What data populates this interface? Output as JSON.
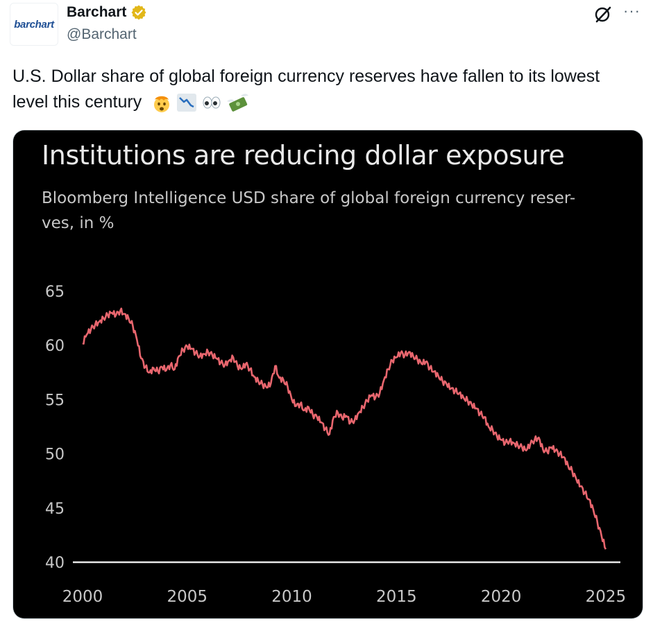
{
  "author": {
    "avatar_text": "barchart",
    "display_name": "Barchart",
    "handle": "@Barchart",
    "verified_badge": "gold-verified-icon"
  },
  "header_actions": {
    "grok_icon": "grok-icon",
    "more_icon_glyph": "···"
  },
  "tweet": {
    "text": "U.S. Dollar share of global foreign currency reserves have fallen to its lowest level this century",
    "emojis": [
      "exploding-head-emoji",
      "chart-decreasing-emoji",
      "eyes-emoji",
      "money-with-wings-emoji"
    ]
  },
  "colors": {
    "line": "#e8666e",
    "verified": "#e2b719",
    "handle": "#536471",
    "chart_bg": "#000000"
  },
  "chart_data": {
    "type": "line",
    "title": "Institutions are reducing dollar exposure",
    "subtitle": "Bloomberg Intelligence USD share of global foreign currency reser- ves, in %",
    "xlabel": "",
    "ylabel": "",
    "xlim": [
      2000,
      2025.7
    ],
    "ylim": [
      40,
      65
    ],
    "xticks": [
      "2000",
      "2005",
      "2010",
      "2015",
      "2020",
      "2025"
    ],
    "yticks": [
      "65",
      "60",
      "55",
      "50",
      "45",
      "40"
    ],
    "grid": false,
    "series": [
      {
        "name": "",
        "points": [
          [
            2000.0,
            60.2
          ],
          [
            2000.2,
            61.0
          ],
          [
            2000.4,
            61.5
          ],
          [
            2000.6,
            61.9
          ],
          [
            2000.8,
            62.2
          ],
          [
            2001.0,
            62.5
          ],
          [
            2001.2,
            62.8
          ],
          [
            2001.4,
            63.0
          ],
          [
            2001.6,
            62.8
          ],
          [
            2001.8,
            63.2
          ],
          [
            2002.0,
            62.9
          ],
          [
            2002.2,
            62.5
          ],
          [
            2002.4,
            61.8
          ],
          [
            2002.6,
            60.5
          ],
          [
            2002.8,
            58.8
          ],
          [
            2003.0,
            58.0
          ],
          [
            2003.2,
            57.5
          ],
          [
            2003.4,
            57.9
          ],
          [
            2003.6,
            57.6
          ],
          [
            2003.8,
            58.0
          ],
          [
            2004.0,
            57.7
          ],
          [
            2004.2,
            58.2
          ],
          [
            2004.4,
            57.8
          ],
          [
            2004.6,
            59.0
          ],
          [
            2004.8,
            59.6
          ],
          [
            2005.0,
            59.9
          ],
          [
            2005.2,
            59.7
          ],
          [
            2005.4,
            59.3
          ],
          [
            2005.6,
            59.0
          ],
          [
            2005.8,
            59.2
          ],
          [
            2006.0,
            59.4
          ],
          [
            2006.2,
            59.1
          ],
          [
            2006.4,
            58.8
          ],
          [
            2006.6,
            58.4
          ],
          [
            2006.8,
            58.2
          ],
          [
            2007.0,
            58.6
          ],
          [
            2007.2,
            58.9
          ],
          [
            2007.4,
            58.1
          ],
          [
            2007.6,
            57.8
          ],
          [
            2007.8,
            58.3
          ],
          [
            2008.0,
            57.8
          ],
          [
            2008.2,
            57.1
          ],
          [
            2008.4,
            56.7
          ],
          [
            2008.6,
            56.4
          ],
          [
            2008.8,
            56.1
          ],
          [
            2009.0,
            56.5
          ],
          [
            2009.2,
            58.1
          ],
          [
            2009.4,
            57.0
          ],
          [
            2009.6,
            56.8
          ],
          [
            2009.8,
            56.2
          ],
          [
            2010.0,
            55.0
          ],
          [
            2010.2,
            54.4
          ],
          [
            2010.4,
            54.6
          ],
          [
            2010.6,
            54.0
          ],
          [
            2010.8,
            54.3
          ],
          [
            2011.0,
            53.6
          ],
          [
            2011.2,
            53.4
          ],
          [
            2011.4,
            52.9
          ],
          [
            2011.6,
            52.3
          ],
          [
            2011.8,
            51.8
          ],
          [
            2012.0,
            53.4
          ],
          [
            2012.2,
            53.8
          ],
          [
            2012.4,
            53.3
          ],
          [
            2012.6,
            53.5
          ],
          [
            2012.8,
            52.9
          ],
          [
            2013.0,
            53.1
          ],
          [
            2013.2,
            53.8
          ],
          [
            2013.4,
            54.3
          ],
          [
            2013.6,
            54.9
          ],
          [
            2013.8,
            55.4
          ],
          [
            2014.0,
            55.2
          ],
          [
            2014.2,
            55.6
          ],
          [
            2014.4,
            56.8
          ],
          [
            2014.6,
            57.8
          ],
          [
            2014.8,
            58.6
          ],
          [
            2015.0,
            58.9
          ],
          [
            2015.2,
            59.3
          ],
          [
            2015.4,
            59.1
          ],
          [
            2015.6,
            59.4
          ],
          [
            2015.8,
            59.0
          ],
          [
            2016.0,
            58.7
          ],
          [
            2016.2,
            58.3
          ],
          [
            2016.4,
            58.5
          ],
          [
            2016.6,
            57.9
          ],
          [
            2016.8,
            57.6
          ],
          [
            2017.0,
            57.2
          ],
          [
            2017.2,
            56.7
          ],
          [
            2017.4,
            56.4
          ],
          [
            2017.6,
            56.0
          ],
          [
            2017.8,
            55.8
          ],
          [
            2018.0,
            55.6
          ],
          [
            2018.2,
            55.2
          ],
          [
            2018.4,
            54.9
          ],
          [
            2018.6,
            54.5
          ],
          [
            2018.8,
            54.2
          ],
          [
            2019.0,
            53.7
          ],
          [
            2019.2,
            53.4
          ],
          [
            2019.4,
            52.5
          ],
          [
            2019.6,
            52.2
          ],
          [
            2019.8,
            51.6
          ],
          [
            2020.0,
            51.3
          ],
          [
            2020.2,
            51.0
          ],
          [
            2020.4,
            51.2
          ],
          [
            2020.6,
            51.0
          ],
          [
            2020.8,
            50.8
          ],
          [
            2021.0,
            50.6
          ],
          [
            2021.2,
            50.3
          ],
          [
            2021.4,
            50.9
          ],
          [
            2021.6,
            51.3
          ],
          [
            2021.8,
            51.5
          ],
          [
            2022.0,
            50.4
          ],
          [
            2022.2,
            50.2
          ],
          [
            2022.4,
            50.6
          ],
          [
            2022.6,
            50.3
          ],
          [
            2022.8,
            50.0
          ],
          [
            2023.0,
            49.7
          ],
          [
            2023.2,
            48.9
          ],
          [
            2023.4,
            48.4
          ],
          [
            2023.6,
            47.6
          ],
          [
            2023.8,
            47.0
          ],
          [
            2024.0,
            46.4
          ],
          [
            2024.2,
            45.8
          ],
          [
            2024.4,
            44.9
          ],
          [
            2024.6,
            43.7
          ],
          [
            2024.8,
            42.4
          ],
          [
            2025.0,
            41.2
          ]
        ]
      }
    ]
  }
}
